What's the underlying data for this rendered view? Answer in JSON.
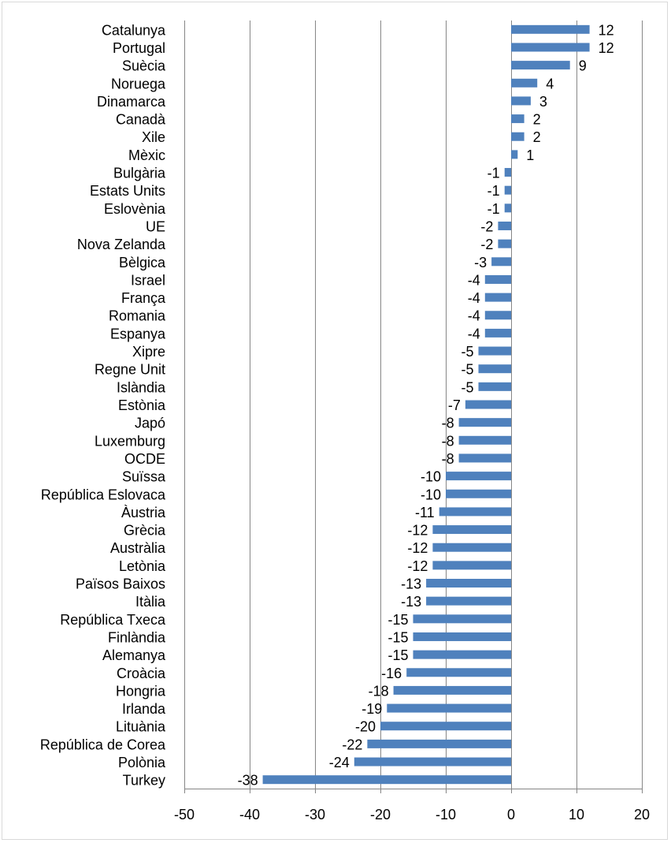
{
  "chart_data": {
    "type": "bar",
    "orientation": "horizontal",
    "title": "",
    "xlabel": "",
    "ylabel": "",
    "xlim": [
      -50,
      20
    ],
    "x_ticks": [
      -50,
      -40,
      -30,
      -20,
      -10,
      0,
      10,
      20
    ],
    "grid": "vertical",
    "legend": "none",
    "bar_color": "#4F81BD",
    "categories": [
      "Catalunya",
      "Portugal",
      "Suècia",
      "Noruega",
      "Dinamarca",
      "Canadà",
      "Xile",
      "Mèxic",
      "Bulgària",
      "Estats Units",
      "Eslovènia",
      "UE",
      "Nova Zelanda",
      "Bèlgica",
      "Israel",
      "França",
      "Romania",
      "Espanya",
      "Xipre",
      "Regne Unit",
      "Islàndia",
      "Estònia",
      "Japó",
      "Luxemburg",
      "OCDE",
      "Suïssa",
      "República Eslovaca",
      "Àustria",
      "Grècia",
      "Austràlia",
      "Letònia",
      "Països Baixos",
      "Itàlia",
      "República Txeca",
      "Finlàndia",
      "Alemanya",
      "Croàcia",
      "Hongria",
      "Irlanda",
      "Lituània",
      "República de Corea",
      "Polònia",
      "Turkey"
    ],
    "values": [
      12,
      12,
      9,
      4,
      3,
      2,
      2,
      1,
      -1,
      -1,
      -1,
      -2,
      -2,
      -3,
      -4,
      -4,
      -4,
      -4,
      -5,
      -5,
      -5,
      -7,
      -8,
      -8,
      -8,
      -10,
      -10,
      -11,
      -12,
      -12,
      -12,
      -13,
      -13,
      -15,
      -15,
      -15,
      -16,
      -18,
      -19,
      -20,
      -22,
      -24,
      -38
    ]
  }
}
